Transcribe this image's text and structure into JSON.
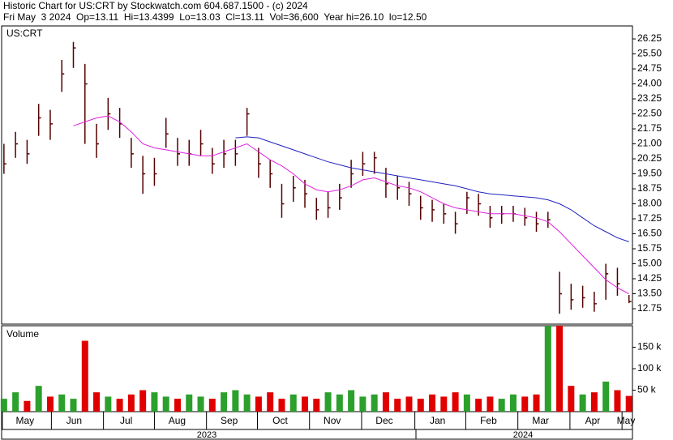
{
  "chart_data": {
    "type": "ohlc",
    "title": "Historic Chart for US:CRT by Stockwatch.com 604.687.1500 - (c) 2024",
    "subtitle": "Fri May  3 2024  Op=13.11  Hi=13.4399  Lo=13.03  Cl=13.11  Vol=36,600  Year hi=26.10  lo=12.50",
    "symbol": "US:CRT",
    "volume_label": "Volume",
    "years": [
      "2023",
      "2024"
    ],
    "up_color": "#2ca02c",
    "down_color": "#e00000",
    "bar_color": "#550000",
    "high": [
      21.0,
      21.6,
      21.2,
      23.0,
      22.7,
      25.2,
      26.1,
      25.0,
      22.0,
      23.3,
      22.8,
      21.3,
      20.4,
      20.3,
      22.3,
      21.3,
      21.2,
      21.7,
      20.8,
      21.2,
      21.2,
      22.8,
      20.8,
      20.2,
      19.0,
      19.4,
      19.2,
      18.3,
      18.6,
      19.0,
      20.2,
      20.6,
      20.6,
      19.8,
      19.4,
      19.1,
      18.4,
      18.2,
      18.0,
      17.6,
      18.6,
      18.5,
      17.9,
      17.9,
      17.9,
      17.8,
      17.6,
      17.6,
      14.6,
      14.0,
      13.9,
      13.6,
      15.0,
      14.8,
      13.44
    ],
    "low": [
      19.5,
      20.3,
      20.0,
      21.4,
      21.2,
      23.6,
      24.8,
      21.0,
      20.3,
      21.7,
      21.3,
      19.8,
      18.5,
      18.9,
      20.8,
      19.9,
      19.9,
      20.4,
      19.5,
      19.8,
      19.9,
      21.4,
      19.3,
      18.8,
      17.3,
      18.1,
      17.8,
      17.2,
      17.3,
      17.7,
      18.8,
      19.4,
      19.5,
      18.3,
      18.2,
      17.9,
      17.2,
      17.1,
      17.0,
      16.5,
      17.5,
      17.4,
      16.8,
      17.0,
      17.1,
      16.9,
      16.6,
      16.8,
      12.5,
      12.7,
      12.8,
      12.6,
      13.2,
      13.4,
      13.03
    ],
    "close": [
      20.0,
      21.0,
      20.5,
      22.3,
      22.0,
      24.5,
      25.8,
      24.0,
      21.0,
      22.5,
      22.0,
      20.5,
      19.5,
      19.5,
      21.5,
      20.5,
      20.5,
      21.0,
      20.0,
      20.5,
      20.5,
      22.5,
      20.0,
      19.5,
      18.0,
      18.8,
      18.5,
      17.7,
      17.8,
      18.3,
      19.5,
      20.0,
      20.3,
      19.0,
      18.8,
      18.5,
      17.8,
      17.7,
      17.5,
      17.0,
      18.3,
      18.0,
      17.3,
      17.5,
      17.5,
      17.3,
      17.0,
      17.2,
      13.5,
      13.2,
      13.3,
      13.0,
      14.5,
      14.0,
      13.11
    ],
    "series": [
      {
        "color": "#e020e0",
        "values": [
          null,
          null,
          null,
          null,
          null,
          null,
          21.9,
          22.1,
          22.3,
          22.4,
          22.1,
          21.6,
          21.0,
          20.8,
          20.7,
          20.6,
          20.5,
          20.4,
          20.4,
          20.6,
          20.8,
          21.0,
          20.6,
          20.2,
          19.9,
          19.5,
          19.0,
          18.7,
          18.6,
          18.7,
          18.9,
          19.2,
          19.3,
          19.1,
          18.9,
          18.8,
          18.6,
          18.3,
          18.0,
          17.8,
          17.7,
          17.6,
          17.5,
          17.5,
          17.5,
          17.4,
          17.3,
          17.1,
          16.6,
          16.0,
          15.4,
          14.8,
          14.2,
          13.8,
          13.5
        ]
      },
      {
        "color": "#2020c0",
        "values": [
          null,
          null,
          null,
          null,
          null,
          null,
          null,
          null,
          null,
          null,
          null,
          null,
          null,
          null,
          null,
          null,
          null,
          null,
          null,
          null,
          21.3,
          21.35,
          21.3,
          21.1,
          20.9,
          20.7,
          20.5,
          20.3,
          20.1,
          19.95,
          19.8,
          19.7,
          19.6,
          19.5,
          19.4,
          19.3,
          19.2,
          19.1,
          19.0,
          18.9,
          18.75,
          18.6,
          18.5,
          18.45,
          18.4,
          18.35,
          18.3,
          18.2,
          18.0,
          17.7,
          17.3,
          16.9,
          16.6,
          16.3,
          16.1
        ]
      }
    ],
    "volume": [
      30000,
      45000,
      25000,
      60000,
      35000,
      40000,
      30000,
      165000,
      45000,
      35000,
      30000,
      40000,
      50000,
      45000,
      35000,
      30000,
      40000,
      35000,
      30000,
      45000,
      50000,
      40000,
      35000,
      45000,
      30000,
      40000,
      35000,
      30000,
      45000,
      40000,
      50000,
      35000,
      40000,
      45000,
      30000,
      35000,
      30000,
      40000,
      35000,
      45000,
      40000,
      30000,
      35000,
      30000,
      40000,
      35000,
      40000,
      200000,
      200000,
      60000,
      40000,
      45000,
      70000,
      50000,
      36600
    ],
    "ylim": [
      11.98,
      26.9
    ],
    "yticks": [
      26.25,
      {
        "value": 25.5,
        "label": "25.50"
      },
      24.75,
      {
        "value": 24,
        "label": "24.00"
      },
      23.25,
      {
        "value": 22.5,
        "label": "22.50"
      },
      21.75,
      {
        "value": 21,
        "label": "21.00"
      },
      20.25,
      {
        "value": 19.5,
        "label": "19.50"
      },
      18.75,
      {
        "value": 18,
        "label": "18.00"
      },
      17.25,
      {
        "value": 16.5,
        "label": "16.50"
      },
      15.75,
      {
        "value": 15,
        "label": "15.00"
      },
      14.25,
      {
        "value": 13.5,
        "label": "13.50"
      },
      12.75
    ],
    "volume_ylim": [
      0,
      200000
    ],
    "volume_yticks": [
      {
        "value": 150000,
        "label": "150 k"
      },
      {
        "value": 100000,
        "label": "100 k"
      },
      {
        "value": 50000,
        "label": "50 k"
      }
    ],
    "xlim": [
      -0.2,
      54.3
    ],
    "xticks": [
      {
        "value": -0.14,
        "label": "May"
      },
      {
        "value": 4.1,
        "label": "Jun"
      },
      {
        "value": 8.6,
        "label": "Jul"
      },
      {
        "value": 13.0,
        "label": "Aug"
      },
      {
        "value": 17.5,
        "label": "Sep"
      },
      {
        "value": 21.9,
        "label": "Oct"
      },
      {
        "value": 26.4,
        "label": "Nov"
      },
      {
        "value": 30.9,
        "label": "Dec"
      },
      {
        "value": 35.5,
        "label": "Jan"
      },
      {
        "value": 39.9,
        "label": "Feb"
      },
      {
        "value": 44.4,
        "label": "Mar"
      },
      {
        "value": 48.9,
        "label": "Apr"
      },
      {
        "value": 53.4,
        "label": "May"
      }
    ]
  }
}
